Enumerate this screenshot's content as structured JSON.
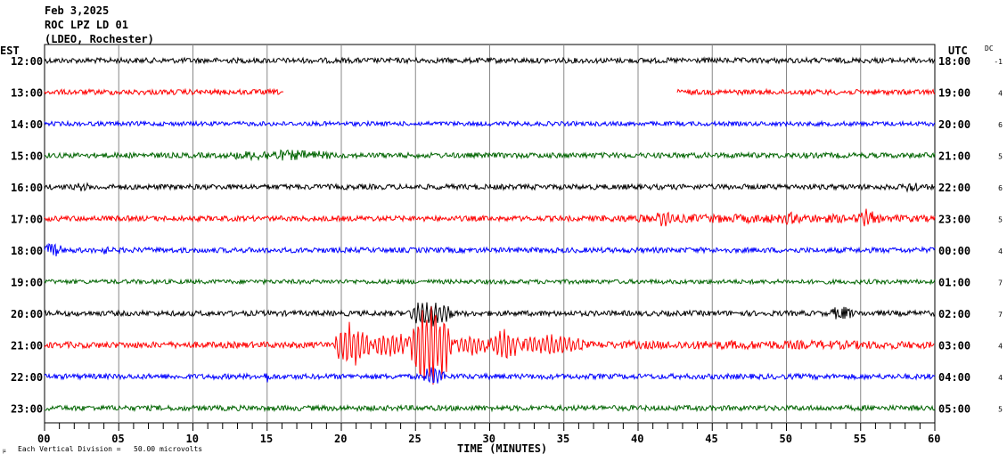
{
  "header": {
    "date": "Feb 3,2025",
    "station": "ROC LPZ LD 01",
    "network": "(LDEO, Rochester)"
  },
  "left_axis_title": "EST",
  "right_axis_title": "UTC",
  "dc_title": "DC",
  "footer": {
    "scale_text": "Each Vertical Division =   50.00 microvolts",
    "scale_mark": "μ"
  },
  "colors": [
    "#000000",
    "#ff0000",
    "#0000ff",
    "#006400"
  ],
  "chart_data": {
    "type": "line",
    "title": "Feb 3,2025 ROC LPZ LD 01 (LDEO, Rochester)",
    "xlabel": "TIME (MINUTES)",
    "xlim": [
      0,
      60
    ],
    "x_ticks": [
      "00",
      "05",
      "10",
      "15",
      "20",
      "25",
      "30",
      "35",
      "40",
      "45",
      "50",
      "55",
      "60"
    ],
    "grid": true,
    "rows": [
      {
        "est": "12:00",
        "utc": "18:00",
        "dc": "-1",
        "base": 3,
        "events": []
      },
      {
        "est": "13:00",
        "utc": "19:00",
        "dc": "4",
        "base": 3,
        "gaps": [
          [
            16.1,
            42.6
          ]
        ],
        "events": []
      },
      {
        "est": "14:00",
        "utc": "20:00",
        "dc": "6",
        "base": 2.5,
        "events": []
      },
      {
        "est": "15:00",
        "utc": "21:00",
        "dc": "5",
        "base": 3,
        "events": [
          [
            12.5,
            19.5,
            6
          ]
        ]
      },
      {
        "est": "16:00",
        "utc": "22:00",
        "dc": "6",
        "base": 3,
        "events": [
          [
            2,
            3,
            5
          ],
          [
            58,
            59,
            7
          ]
        ]
      },
      {
        "est": "17:00",
        "utc": "23:00",
        "dc": "5",
        "base": 3,
        "events": [
          [
            37,
            60,
            5
          ],
          [
            41,
            42.5,
            9
          ],
          [
            49.5,
            51,
            7
          ],
          [
            54.8,
            56,
            10
          ]
        ]
      },
      {
        "est": "18:00",
        "utc": "00:00",
        "dc": "4",
        "base": 3,
        "events": [
          [
            0,
            1.2,
            8
          ],
          [
            3.8,
            4.3,
            5
          ]
        ]
      },
      {
        "est": "19:00",
        "utc": "01:00",
        "dc": "7",
        "base": 2.5,
        "events": []
      },
      {
        "est": "20:00",
        "utc": "02:00",
        "dc": "7",
        "base": 3,
        "events": [
          [
            24.5,
            27.5,
            14
          ],
          [
            53,
            54.5,
            8
          ]
        ]
      },
      {
        "est": "21:00",
        "utc": "03:00",
        "dc": "4",
        "base": 3.5,
        "events": [
          [
            19.5,
            22,
            24
          ],
          [
            22,
            24.5,
            14
          ],
          [
            24.5,
            27.5,
            46
          ],
          [
            27.5,
            30,
            12
          ],
          [
            30,
            32,
            18
          ],
          [
            32,
            36.5,
            11
          ],
          [
            36.5,
            60,
            5
          ]
        ]
      },
      {
        "est": "22:00",
        "utc": "04:00",
        "dc": "4",
        "base": 3,
        "events": [
          [
            14.8,
            15.3,
            7
          ],
          [
            25.5,
            27,
            10
          ]
        ]
      },
      {
        "est": "23:00",
        "utc": "05:00",
        "dc": "5",
        "base": 3,
        "events": []
      }
    ]
  }
}
